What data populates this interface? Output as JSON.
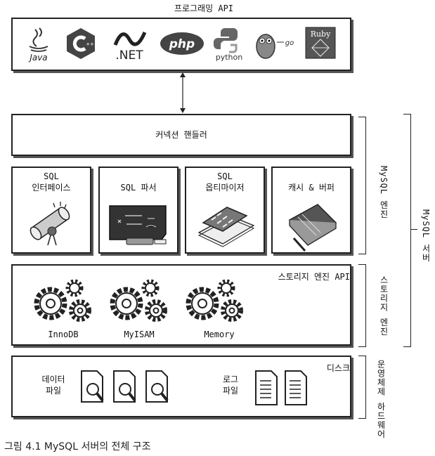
{
  "top": {
    "title": "프로그래밍 API",
    "logos": [
      "Java",
      "C++",
      ".NET",
      "php",
      "python",
      "go",
      "Ruby"
    ]
  },
  "connection_handler": "커넥션 핸들러",
  "engine_modules": [
    {
      "label": "SQL\n인터페이스",
      "icon": "scroll-icon"
    },
    {
      "label": "SQL 파서",
      "icon": "chalkboard-icon"
    },
    {
      "label": "SQL\n옵티마이저",
      "icon": "calculator-icon"
    },
    {
      "label": "캐시 & 버퍼",
      "icon": "notebook-icon"
    }
  ],
  "mysql_engine_label": "MySQL 엔진",
  "mysql_server_label": "MySQL 서버",
  "storage": {
    "title": "스토리지 엔진 API",
    "engines": [
      "InnoDB",
      "MyISAM",
      "Memory"
    ],
    "side_label": "스토리지 엔진"
  },
  "disk": {
    "title": "디스크",
    "data_files": "데이터\n파일",
    "log_files": "로그\n파일",
    "side_label": "운영체제\n하드웨어"
  },
  "caption": "그림 4.1 MySQL 서버의 전체 구조"
}
